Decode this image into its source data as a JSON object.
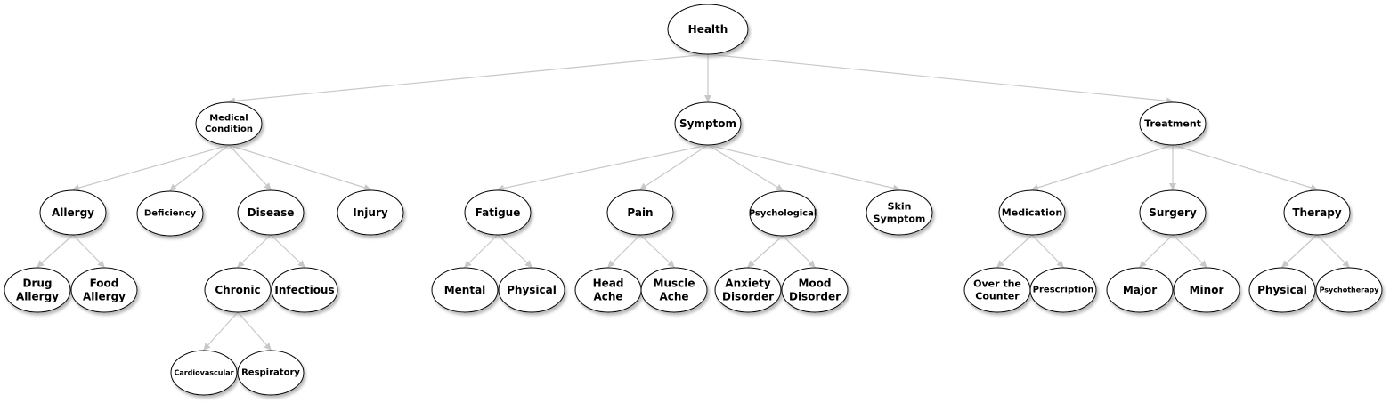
{
  "diagram": {
    "type": "tree",
    "colors": {
      "node_fill": "#ffffff",
      "node_stroke": "#000000",
      "edge": "#c8c8c8",
      "shadow": "#9a9a9a"
    },
    "nodes": [
      {
        "id": "health",
        "lines": [
          "Health"
        ]
      },
      {
        "id": "medical-condition",
        "lines": [
          "Medical",
          "Condition"
        ]
      },
      {
        "id": "symptom",
        "lines": [
          "Symptom"
        ]
      },
      {
        "id": "treatment",
        "lines": [
          "Treatment"
        ]
      },
      {
        "id": "allergy",
        "lines": [
          "Allergy"
        ]
      },
      {
        "id": "deficiency",
        "lines": [
          "Deficiency"
        ]
      },
      {
        "id": "disease",
        "lines": [
          "Disease"
        ]
      },
      {
        "id": "injury",
        "lines": [
          "Injury"
        ]
      },
      {
        "id": "fatigue",
        "lines": [
          "Fatigue"
        ]
      },
      {
        "id": "pain",
        "lines": [
          "Pain"
        ]
      },
      {
        "id": "psychological",
        "lines": [
          "Psychological"
        ]
      },
      {
        "id": "skin-symptom",
        "lines": [
          "Skin",
          "Symptom"
        ]
      },
      {
        "id": "medication",
        "lines": [
          "Medication"
        ]
      },
      {
        "id": "surgery",
        "lines": [
          "Surgery"
        ]
      },
      {
        "id": "therapy",
        "lines": [
          "Therapy"
        ]
      },
      {
        "id": "drug-allergy",
        "lines": [
          "Drug",
          "Allergy"
        ]
      },
      {
        "id": "food-allergy",
        "lines": [
          "Food",
          "Allergy"
        ]
      },
      {
        "id": "chronic",
        "lines": [
          "Chronic"
        ]
      },
      {
        "id": "infectious",
        "lines": [
          "Infectious"
        ]
      },
      {
        "id": "mental",
        "lines": [
          "Mental"
        ]
      },
      {
        "id": "physical-fatigue",
        "lines": [
          "Physical"
        ]
      },
      {
        "id": "head-ache",
        "lines": [
          "Head",
          "Ache"
        ]
      },
      {
        "id": "muscle-ache",
        "lines": [
          "Muscle",
          "Ache"
        ]
      },
      {
        "id": "anxiety-disorder",
        "lines": [
          "Anxiety",
          "Disorder"
        ]
      },
      {
        "id": "mood-disorder",
        "lines": [
          "Mood",
          "Disorder"
        ]
      },
      {
        "id": "over-the-counter",
        "lines": [
          "Over the",
          "Counter"
        ]
      },
      {
        "id": "prescription",
        "lines": [
          "Prescription"
        ]
      },
      {
        "id": "major",
        "lines": [
          "Major"
        ]
      },
      {
        "id": "minor",
        "lines": [
          "Minor"
        ]
      },
      {
        "id": "physical-therapy",
        "lines": [
          "Physical"
        ]
      },
      {
        "id": "psychotherapy",
        "lines": [
          "Psychotherapy"
        ]
      },
      {
        "id": "cardiovascular",
        "lines": [
          "Cardiovascular"
        ]
      },
      {
        "id": "respiratory",
        "lines": [
          "Respiratory"
        ]
      }
    ],
    "edges": [
      [
        "health",
        "medical-condition"
      ],
      [
        "health",
        "symptom"
      ],
      [
        "health",
        "treatment"
      ],
      [
        "medical-condition",
        "allergy"
      ],
      [
        "medical-condition",
        "deficiency"
      ],
      [
        "medical-condition",
        "disease"
      ],
      [
        "medical-condition",
        "injury"
      ],
      [
        "symptom",
        "fatigue"
      ],
      [
        "symptom",
        "pain"
      ],
      [
        "symptom",
        "psychological"
      ],
      [
        "symptom",
        "skin-symptom"
      ],
      [
        "treatment",
        "medication"
      ],
      [
        "treatment",
        "surgery"
      ],
      [
        "treatment",
        "therapy"
      ],
      [
        "allergy",
        "drug-allergy"
      ],
      [
        "allergy",
        "food-allergy"
      ],
      [
        "disease",
        "chronic"
      ],
      [
        "disease",
        "infectious"
      ],
      [
        "chronic",
        "cardiovascular"
      ],
      [
        "chronic",
        "respiratory"
      ],
      [
        "fatigue",
        "mental"
      ],
      [
        "fatigue",
        "physical-fatigue"
      ],
      [
        "pain",
        "head-ache"
      ],
      [
        "pain",
        "muscle-ache"
      ],
      [
        "psychological",
        "anxiety-disorder"
      ],
      [
        "psychological",
        "mood-disorder"
      ],
      [
        "medication",
        "over-the-counter"
      ],
      [
        "medication",
        "prescription"
      ],
      [
        "surgery",
        "major"
      ],
      [
        "surgery",
        "minor"
      ],
      [
        "therapy",
        "physical-therapy"
      ],
      [
        "therapy",
        "psychotherapy"
      ]
    ]
  }
}
